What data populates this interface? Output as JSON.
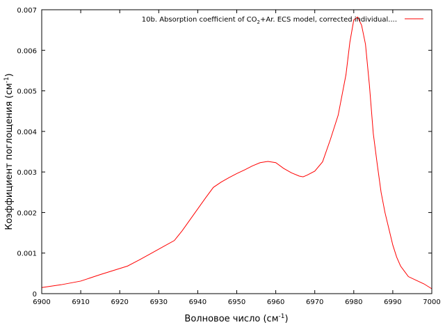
{
  "chart_data": {
    "type": "line",
    "title": "",
    "xlabel": "Волновое число (см",
    "xlabel_sup": "-1",
    "xlabel_suffix": ")",
    "ylabel": "Коэффициент поглощения (см",
    "ylabel_sup": "-1",
    "ylabel_suffix": ")",
    "xlim": [
      6900,
      7000
    ],
    "ylim": [
      0,
      0.007
    ],
    "x_ticks": [
      6900,
      6910,
      6920,
      6930,
      6940,
      6950,
      6960,
      6970,
      6980,
      6990,
      7000
    ],
    "x_tick_labels": [
      "6900",
      "6910",
      "6920",
      "6930",
      "6940",
      "6950",
      "6960",
      "6970",
      "6980",
      "6990",
      "7000"
    ],
    "y_ticks": [
      0,
      0.001,
      0.002,
      0.003,
      0.004,
      0.005,
      0.006,
      0.007
    ],
    "y_tick_labels": [
      "0",
      "0.001",
      "0.002",
      "0.003",
      "0.004",
      "0.005",
      "0.006",
      "0.007"
    ],
    "grid": false,
    "legend_position": "top-right",
    "series": [
      {
        "name_prefix": "10b. Absorption coefficient of CO",
        "name_sub": "2",
        "name_suffix": "+Ar. ECS model, corrected individual....",
        "color": "#ff0000",
        "x": [
          6900,
          6905,
          6910,
          6915,
          6920,
          6922,
          6925,
          6928,
          6931,
          6934,
          6936,
          6938,
          6940,
          6942,
          6944,
          6946,
          6948,
          6950,
          6952,
          6954,
          6956,
          6958,
          6960,
          6962,
          6964,
          6966,
          6967,
          6968,
          6970,
          6972,
          6974,
          6976,
          6978,
          6979,
          6980,
          6981,
          6982,
          6983,
          6984,
          6985,
          6986,
          6987,
          6988,
          6989,
          6990,
          6991,
          6992,
          6993,
          6994,
          6996,
          6998,
          7000
        ],
        "y": [
          0.00015,
          0.00022,
          0.00031,
          0.00047,
          0.00062,
          0.00068,
          0.00083,
          0.00099,
          0.00115,
          0.00131,
          0.00155,
          0.00182,
          0.00209,
          0.00236,
          0.00262,
          0.00275,
          0.00286,
          0.00296,
          0.00305,
          0.00315,
          0.00323,
          0.00326,
          0.00323,
          0.00309,
          0.00298,
          0.0029,
          0.00288,
          0.00292,
          0.00302,
          0.00325,
          0.0038,
          0.0044,
          0.0054,
          0.0062,
          0.00675,
          0.00682,
          0.00662,
          0.00615,
          0.00515,
          0.00395,
          0.0032,
          0.0025,
          0.002,
          0.0016,
          0.0012,
          0.0009,
          0.00068,
          0.00055,
          0.00042,
          0.00033,
          0.00024,
          0.00012
        ]
      }
    ]
  }
}
